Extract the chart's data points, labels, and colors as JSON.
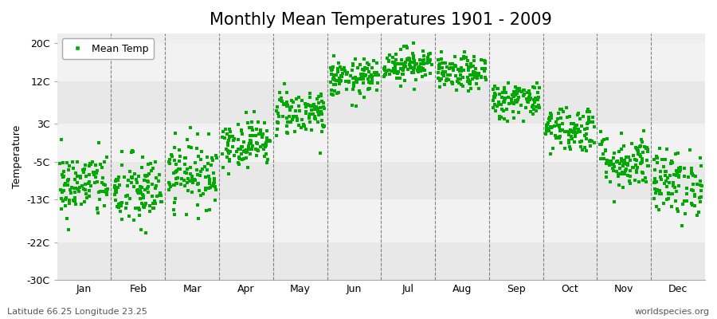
{
  "title": "Monthly Mean Temperatures 1901 - 2009",
  "ylabel": "Temperature",
  "dot_color": "#00AA00",
  "bg_color": "#eeeeee",
  "band_colors": [
    "#e8e8e8",
    "#f2f2f2"
  ],
  "yticks": [
    -30,
    -22,
    -13,
    -5,
    3,
    12,
    20
  ],
  "ytick_labels": [
    "-30C",
    "-22C",
    "-13C",
    "-5C",
    "3C",
    "12C",
    "20C"
  ],
  "months": [
    "Jan",
    "Feb",
    "Mar",
    "Apr",
    "May",
    "Jun",
    "Jul",
    "Aug",
    "Sep",
    "Oct",
    "Nov",
    "Dec"
  ],
  "month_means": [
    -10.0,
    -11.5,
    -7.5,
    -1.0,
    5.5,
    12.5,
    15.5,
    13.5,
    8.0,
    2.0,
    -5.0,
    -9.5
  ],
  "month_stds": [
    3.5,
    4.0,
    3.5,
    2.5,
    2.5,
    2.0,
    1.8,
    1.8,
    2.0,
    2.5,
    3.0,
    3.5
  ],
  "n_years": 109,
  "bottom_left_text": "Latitude 66.25 Longitude 23.25",
  "bottom_right_text": "worldspecies.org",
  "legend_label": "Mean Temp",
  "ylim": [
    -30,
    22
  ],
  "title_fontsize": 15,
  "axis_fontsize": 9,
  "tick_fontsize": 9,
  "dot_size": 6,
  "dot_marker": "s"
}
